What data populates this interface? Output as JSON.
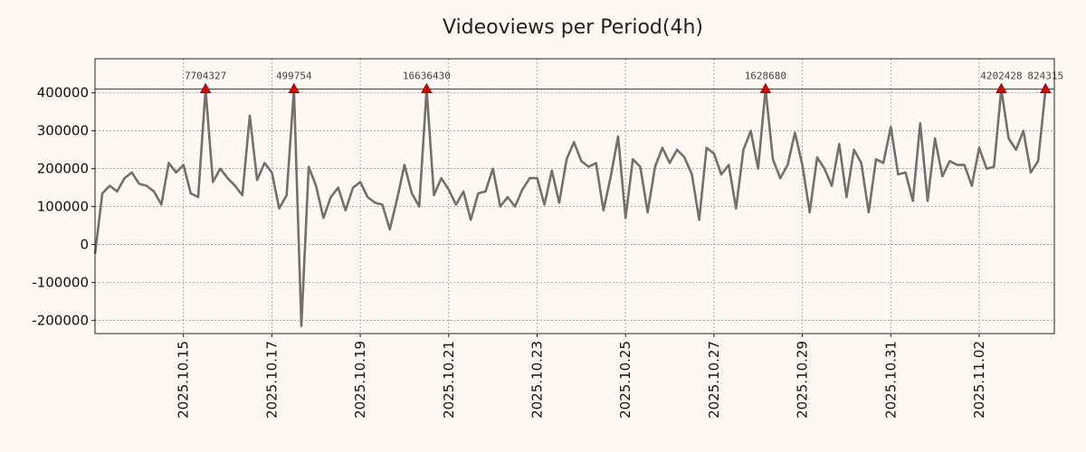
{
  "chart_data": {
    "type": "line",
    "title": "Videoviews per Period(4h)",
    "xlabel": "",
    "ylabel": "",
    "x_start": "2025.10.13",
    "x_step_days": 0.16667,
    "xlim_days": [
      0,
      21.7
    ],
    "ylim": [
      -235000,
      490000
    ],
    "clip_value": 410000,
    "y_ticks": [
      -200000,
      -100000,
      0,
      100000,
      200000,
      300000,
      400000
    ],
    "y_tick_labels": [
      "-200000",
      "-100000",
      "0",
      "100000",
      "200000",
      "300000",
      "400000"
    ],
    "x_ticks_days": [
      2,
      4,
      6,
      8,
      10,
      12,
      14,
      16,
      18,
      20
    ],
    "x_tick_labels": [
      "2025.10.15",
      "2025.10.17",
      "2025.10.19",
      "2025.10.21",
      "2025.10.23",
      "2025.10.25",
      "2025.10.27",
      "2025.10.29",
      "2025.10.31",
      "2025.11.02"
    ],
    "grid": true,
    "series": [
      {
        "name": "Videoviews",
        "color": "#707070",
        "values": [
          -25000,
          135000,
          155000,
          140000,
          175000,
          190000,
          160000,
          155000,
          140000,
          105000,
          215000,
          190000,
          210000,
          135000,
          125000,
          410000,
          165000,
          200000,
          175000,
          155000,
          130000,
          340000,
          170000,
          215000,
          190000,
          95000,
          130000,
          410000,
          -215000,
          205000,
          155000,
          70000,
          125000,
          150000,
          90000,
          150000,
          165000,
          125000,
          110000,
          105000,
          40000,
          120000,
          210000,
          135000,
          100000,
          410000,
          130000,
          175000,
          145000,
          105000,
          140000,
          65000,
          135000,
          140000,
          200000,
          100000,
          125000,
          100000,
          145000,
          175000,
          175000,
          105000,
          195000,
          110000,
          225000,
          270000,
          220000,
          205000,
          215000,
          90000,
          180000,
          285000,
          70000,
          225000,
          205000,
          85000,
          205000,
          255000,
          215000,
          250000,
          230000,
          185000,
          65000,
          255000,
          240000,
          185000,
          210000,
          95000,
          250000,
          300000,
          200000,
          410000,
          225000,
          175000,
          210000,
          295000,
          210000,
          85000,
          230000,
          200000,
          155000,
          265000,
          125000,
          250000,
          215000,
          85000,
          225000,
          215000,
          310000,
          185000,
          190000,
          115000,
          320000,
          115000,
          280000,
          180000,
          220000,
          210000,
          210000,
          155000,
          255000,
          200000,
          205000,
          410000,
          280000,
          250000,
          300000,
          190000,
          220000,
          410000
        ]
      }
    ],
    "peaks": [
      {
        "index": 15,
        "label": "7704327"
      },
      {
        "index": 27,
        "label": "499754"
      },
      {
        "index": 45,
        "label": "16636430"
      },
      {
        "index": 91,
        "label": "1628680"
      },
      {
        "index": 123,
        "label": "4202428"
      },
      {
        "index": 129,
        "label": "824315"
      }
    ],
    "marker_color": "#dd0000"
  }
}
